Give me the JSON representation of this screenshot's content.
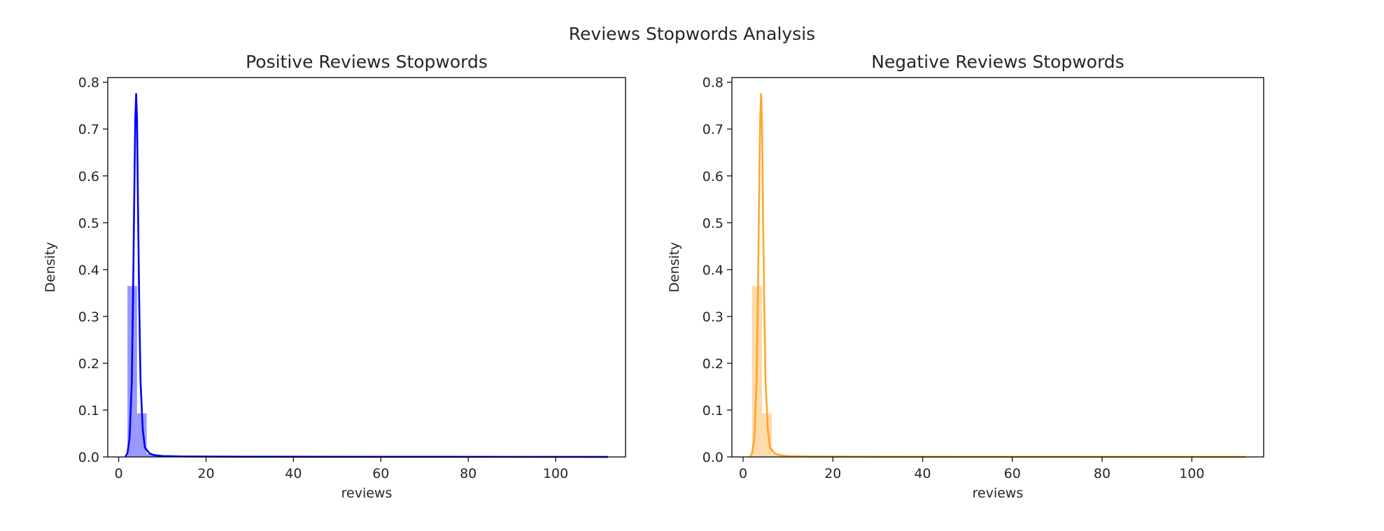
{
  "figure": {
    "suptitle": "Reviews Stopwords Analysis"
  },
  "chart_data": [
    {
      "type": "area",
      "title": "Positive Reviews Stopwords",
      "xlabel": "reviews",
      "ylabel": "Density",
      "xlim": [
        -2.5,
        116
      ],
      "ylim": [
        0,
        0.81
      ],
      "xticks": [
        0,
        20,
        40,
        60,
        80,
        100
      ],
      "yticks": [
        0.0,
        0.1,
        0.2,
        0.3,
        0.4,
        0.5,
        0.6,
        0.7,
        0.8
      ],
      "grid": false,
      "color": "#0000ff",
      "histogram": {
        "bin_edges": [
          2.0,
          4.2,
          6.4,
          8.6,
          10.8,
          13.0,
          15.2,
          17.4,
          19.6,
          21.8,
          24.0,
          26.2,
          28.4,
          30.6,
          32.8,
          35.0,
          37.2,
          39.4,
          41.6,
          43.8,
          46.0,
          48.2,
          50.4,
          52.6,
          54.8,
          57.0,
          59.2,
          61.4,
          63.6,
          65.8,
          68.0,
          70.2,
          72.4,
          74.6,
          76.8,
          79.0,
          81.2,
          83.4,
          85.6,
          87.8,
          90.0,
          92.2,
          94.4,
          96.6,
          98.8,
          101.0,
          103.2,
          105.4,
          107.6,
          109.8,
          112.0
        ],
        "densities": [
          0.365,
          0.093,
          0.006,
          0.002,
          0.001,
          0.001,
          0.0005,
          0.0003,
          0.0002,
          0.0002,
          0.0001,
          0.0001,
          0.0001,
          0.0001,
          0.0001,
          0.0001,
          0.0001,
          0.0001,
          0.0001,
          0.0001,
          0.0001,
          0.0001,
          0.0001,
          0.0001,
          0.0001,
          0.0001,
          0.0001,
          0.0001,
          0.0001,
          0.0001,
          0.0001,
          0.0001,
          0.0001,
          0.0001,
          0.0001,
          0.0001,
          0.0001,
          0.0001,
          0.0001,
          0.0001,
          0.0001,
          0.0001,
          0.0001,
          0.0001,
          0.0001,
          0.0001,
          0.0001,
          0.0001,
          0.0001,
          0.0001
        ]
      },
      "kde": {
        "x": [
          1.5,
          2.0,
          2.5,
          3.0,
          3.3,
          3.6,
          3.8,
          4.0,
          4.2,
          4.4,
          4.7,
          5.0,
          5.5,
          6.0,
          7.0,
          8.0,
          10.0,
          15.0,
          30.0,
          60.0,
          90.0,
          112.0
        ],
        "y": [
          0.0,
          0.008,
          0.04,
          0.16,
          0.35,
          0.58,
          0.72,
          0.775,
          0.72,
          0.55,
          0.33,
          0.16,
          0.06,
          0.02,
          0.008,
          0.004,
          0.002,
          0.001,
          0.0005,
          0.0003,
          0.0002,
          0.0001
        ]
      }
    },
    {
      "type": "area",
      "title": "Negative Reviews Stopwords",
      "xlabel": "reviews",
      "ylabel": "Density",
      "xlim": [
        -2.5,
        116
      ],
      "ylim": [
        0,
        0.81
      ],
      "xticks": [
        0,
        20,
        40,
        60,
        80,
        100
      ],
      "yticks": [
        0.0,
        0.1,
        0.2,
        0.3,
        0.4,
        0.5,
        0.6,
        0.7,
        0.8
      ],
      "grid": false,
      "color": "#ffa62b",
      "histogram": {
        "bin_edges": [
          2.0,
          4.2,
          6.4,
          8.6,
          10.8,
          13.0,
          15.2,
          17.4,
          19.6,
          21.8,
          24.0,
          26.2,
          28.4,
          30.6,
          32.8,
          35.0,
          37.2,
          39.4,
          41.6,
          43.8,
          46.0,
          48.2,
          50.4,
          52.6,
          54.8,
          57.0,
          59.2,
          61.4,
          63.6,
          65.8,
          68.0,
          70.2,
          72.4,
          74.6,
          76.8,
          79.0,
          81.2,
          83.4,
          85.6,
          87.8,
          90.0,
          92.2,
          94.4,
          96.6,
          98.8,
          101.0,
          103.2,
          105.4,
          107.6,
          109.8,
          112.0
        ],
        "densities": [
          0.365,
          0.093,
          0.006,
          0.002,
          0.001,
          0.001,
          0.0005,
          0.0003,
          0.0002,
          0.0002,
          0.0001,
          0.0001,
          0.0001,
          0.0001,
          0.0001,
          0.0001,
          0.0001,
          0.0001,
          0.0001,
          0.0001,
          0.0001,
          0.0001,
          0.0001,
          0.0001,
          0.0001,
          0.0001,
          0.0001,
          0.0001,
          0.0001,
          0.0001,
          0.0001,
          0.0001,
          0.0001,
          0.0001,
          0.0001,
          0.0001,
          0.0001,
          0.0001,
          0.0001,
          0.0001,
          0.0001,
          0.0001,
          0.0001,
          0.0001,
          0.0001,
          0.0001,
          0.0001,
          0.0001,
          0.0001,
          0.0001
        ]
      },
      "kde": {
        "x": [
          1.5,
          2.0,
          2.5,
          3.0,
          3.3,
          3.6,
          3.8,
          4.0,
          4.2,
          4.4,
          4.7,
          5.0,
          5.5,
          6.0,
          7.0,
          8.0,
          10.0,
          15.0,
          30.0,
          60.0,
          90.0,
          112.0
        ],
        "y": [
          0.0,
          0.008,
          0.04,
          0.16,
          0.35,
          0.58,
          0.72,
          0.775,
          0.72,
          0.55,
          0.33,
          0.16,
          0.06,
          0.02,
          0.008,
          0.004,
          0.002,
          0.001,
          0.0005,
          0.0003,
          0.0002,
          0.0001
        ]
      }
    }
  ]
}
